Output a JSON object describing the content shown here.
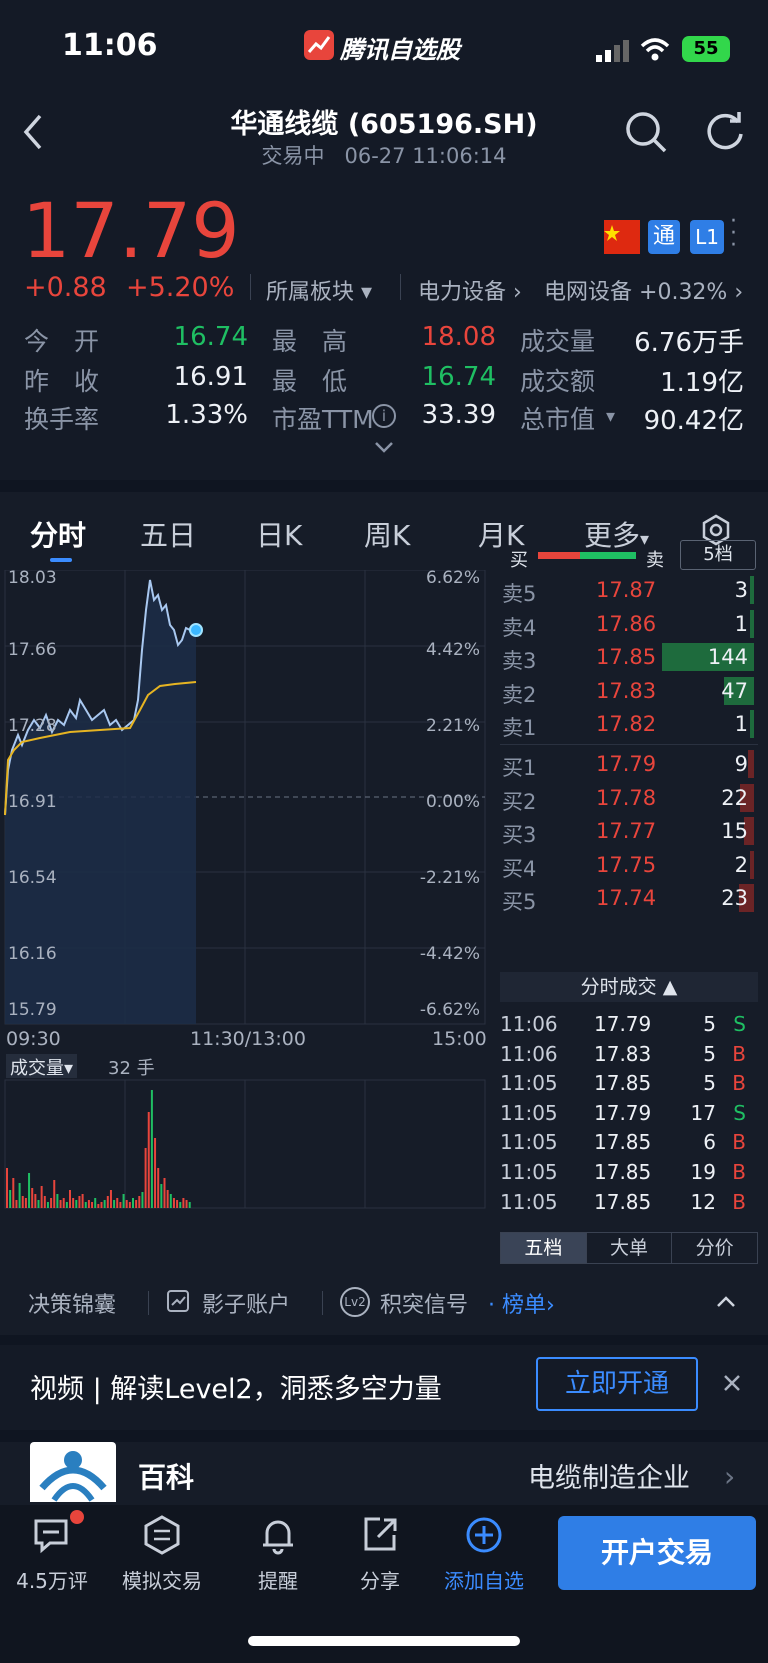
{
  "status": {
    "time": "11:06",
    "app_name": "腾讯自选股",
    "battery": "55"
  },
  "header": {
    "title": "华通线缆 (605196.SH)",
    "subtitle": "交易中   06-27 11:06:14"
  },
  "quote": {
    "price": "17.79",
    "change": "+0.88",
    "change_pct": "+5.20%",
    "sector_label": "所属板块",
    "sector1": "电力设备",
    "sector2": "电网设备",
    "sector2_pct": "+0.32%",
    "badge_tong": "通",
    "badge_l1": "L1",
    "rows": [
      {
        "l1": "今　开",
        "v1": "16.74",
        "l2": "最　高",
        "v2": "18.08",
        "l3": "成交量",
        "v3": "6.76万手"
      },
      {
        "l1": "昨　收",
        "v1": "16.91",
        "l2": "最　低",
        "v2": "16.74",
        "l3": "成交额",
        "v3": "1.19亿"
      },
      {
        "l1": "换手率",
        "v1": "1.33%",
        "l2": "市盈TTM",
        "v2": "33.39",
        "l3": "总市值",
        "v3": "90.42亿"
      }
    ]
  },
  "tabs": [
    "分时",
    "五日",
    "日K",
    "周K",
    "月K",
    "更多"
  ],
  "chart": {
    "y_left": [
      "18.03",
      "17.66",
      "17.28",
      "16.91",
      "16.54",
      "16.16",
      "15.79"
    ],
    "y_right": [
      "6.62%",
      "4.42%",
      "2.21%",
      "0.00%",
      "-2.21%",
      "-4.42%",
      "-6.62%"
    ],
    "x_labels": [
      "09:30",
      "11:30/13:00",
      "15:00"
    ],
    "volume_label": "成交量",
    "volume_value": "32 手"
  },
  "orderbook": {
    "buy_label": "买",
    "sell_label": "卖",
    "depth_btn": "5档",
    "sells": [
      {
        "label": "卖5",
        "price": "17.87",
        "vol": "3"
      },
      {
        "label": "卖4",
        "price": "17.86",
        "vol": "1"
      },
      {
        "label": "卖3",
        "price": "17.85",
        "vol": "144"
      },
      {
        "label": "卖2",
        "price": "17.83",
        "vol": "47"
      },
      {
        "label": "卖1",
        "price": "17.82",
        "vol": "1"
      }
    ],
    "buys": [
      {
        "label": "买1",
        "price": "17.79",
        "vol": "9"
      },
      {
        "label": "买2",
        "price": "17.78",
        "vol": "22"
      },
      {
        "label": "买3",
        "price": "17.77",
        "vol": "15"
      },
      {
        "label": "买4",
        "price": "17.75",
        "vol": "2"
      },
      {
        "label": "买5",
        "price": "17.74",
        "vol": "23"
      }
    ],
    "trades_title": "分时成交",
    "trades": [
      {
        "t": "11:06",
        "p": "17.79",
        "v": "5",
        "d": "S"
      },
      {
        "t": "11:06",
        "p": "17.83",
        "v": "5",
        "d": "B"
      },
      {
        "t": "11:05",
        "p": "17.85",
        "v": "5",
        "d": "B"
      },
      {
        "t": "11:05",
        "p": "17.79",
        "v": "17",
        "d": "S"
      },
      {
        "t": "11:05",
        "p": "17.85",
        "v": "6",
        "d": "B"
      },
      {
        "t": "11:05",
        "p": "17.85",
        "v": "19",
        "d": "B"
      },
      {
        "t": "11:05",
        "p": "17.85",
        "v": "12",
        "d": "B"
      }
    ],
    "bottom_tabs": [
      "五档",
      "大单",
      "分价"
    ]
  },
  "decision": {
    "item1": "决策锦囊",
    "item2": "影子账户",
    "item3": "积突信号",
    "item3_link": "· 榜单"
  },
  "banner": {
    "text": "视频 | 解读Level2，洞悉多空力量",
    "cta": "立即开通"
  },
  "baike": {
    "title": "百科",
    "desc": "电缆制造企业"
  },
  "nav": {
    "comments": "4.5万评",
    "sim": "模拟交易",
    "alert": "提醒",
    "share": "分享",
    "add": "添加自选",
    "open": "开户交易"
  },
  "colors": {
    "up": "#e8453c",
    "down": "#1fbf63",
    "accent": "#3b8cff"
  }
}
